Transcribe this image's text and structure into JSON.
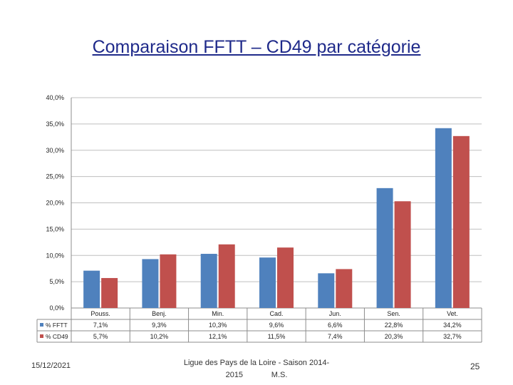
{
  "title": "Comparaison FFTT – CD49 par catégorie",
  "chart_data": {
    "type": "bar",
    "categories": [
      "Pouss.",
      "Benj.",
      "Min.",
      "Cad.",
      "Jun.",
      "Sen.",
      "Vet."
    ],
    "series": [
      {
        "name": "% FFTT",
        "color": "#4f81bd",
        "values": [
          7.1,
          9.3,
          10.3,
          9.6,
          6.6,
          22.8,
          34.2
        ],
        "labels": [
          "7,1%",
          "9,3%",
          "10,3%",
          "9,6%",
          "6,6%",
          "22,8%",
          "34,2%"
        ]
      },
      {
        "name": "% CD49",
        "color": "#c0504d",
        "values": [
          5.7,
          10.2,
          12.1,
          11.5,
          7.4,
          20.3,
          32.7
        ],
        "labels": [
          "5,7%",
          "10,2%",
          "12,1%",
          "11,5%",
          "7,4%",
          "20,3%",
          "32,7%"
        ]
      }
    ],
    "ylim": [
      0,
      40
    ],
    "yticks": [
      "0,0%",
      "5,0%",
      "10,0%",
      "15,0%",
      "20,0%",
      "25,0%",
      "30,0%",
      "35,0%",
      "40,0%"
    ],
    "grid": true,
    "legend": "data-table"
  },
  "footer": {
    "date": "15/12/2021",
    "line1": "Ligue des Pays de la Loire - Saison 2014-",
    "line2": "2015             M.S.",
    "page": "25"
  }
}
